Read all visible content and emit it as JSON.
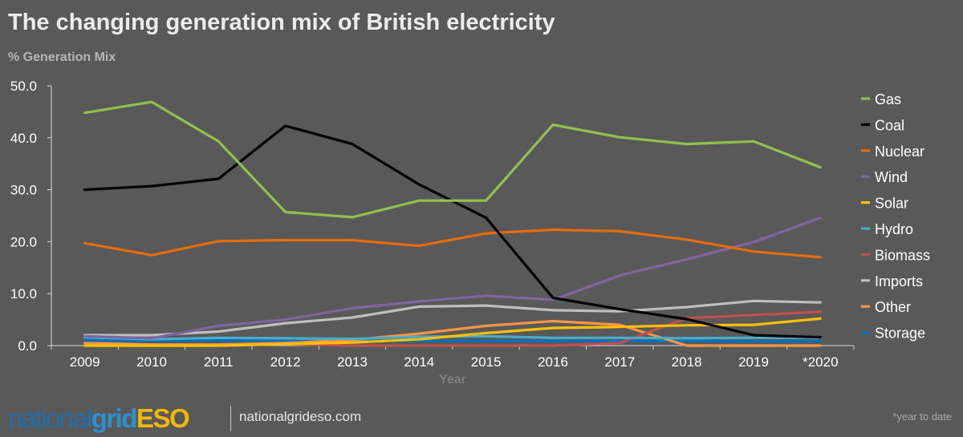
{
  "chart_data": {
    "type": "line",
    "title": "The changing generation mix of British electricity",
    "ylabel": "% Generation Mix",
    "xlabel": "Year",
    "categories": [
      "2009",
      "2010",
      "2011",
      "2012",
      "2013",
      "2014",
      "2015",
      "2016",
      "2017",
      "2018",
      "2019",
      "*2020"
    ],
    "y_ticks": [
      "0.0",
      "10.0",
      "20.0",
      "30.0",
      "40.0",
      "50.0"
    ],
    "ylim": [
      0,
      50
    ],
    "grid": false,
    "legend_position": "right",
    "series": [
      {
        "name": "Gas",
        "color": "#92c04c",
        "values": [
          44.8,
          46.9,
          39.3,
          25.7,
          24.7,
          27.9,
          27.9,
          42.5,
          40.1,
          38.8,
          39.3,
          34.3
        ]
      },
      {
        "name": "Coal",
        "color": "#000000",
        "values": [
          30.0,
          30.7,
          32.1,
          42.3,
          38.8,
          31.0,
          24.6,
          9.2,
          7.0,
          5.1,
          2.0,
          1.6
        ]
      },
      {
        "name": "Nuclear",
        "color": "#e46c0a",
        "values": [
          19.7,
          17.4,
          20.1,
          20.3,
          20.3,
          19.2,
          21.6,
          22.3,
          22.0,
          20.4,
          18.1,
          17.0
        ]
      },
      {
        "name": "Wind",
        "color": "#8064a2",
        "values": [
          1.8,
          1.4,
          3.8,
          5.0,
          7.2,
          8.5,
          9.6,
          8.8,
          13.5,
          16.6,
          19.9,
          24.6
        ]
      },
      {
        "name": "Solar",
        "color": "#ffc000",
        "values": [
          0.0,
          0.0,
          0.0,
          0.3,
          0.6,
          1.2,
          2.4,
          3.4,
          3.6,
          3.9,
          4.0,
          5.2
        ]
      },
      {
        "name": "Hydro",
        "color": "#4bacc6",
        "values": [
          1.6,
          1.2,
          1.5,
          1.4,
          1.3,
          1.7,
          1.8,
          1.5,
          1.5,
          1.4,
          1.5,
          1.5
        ]
      },
      {
        "name": "Biomass",
        "color": "#c0504d",
        "values": [
          0.0,
          0.0,
          0.0,
          0.3,
          0.0,
          0.0,
          0.0,
          0.0,
          0.5,
          5.3,
          5.9,
          6.5
        ]
      },
      {
        "name": "Imports",
        "color": "#bfbfbf",
        "values": [
          2.0,
          2.0,
          2.7,
          4.3,
          5.4,
          7.5,
          7.7,
          6.8,
          6.6,
          7.4,
          8.6,
          8.3
        ]
      },
      {
        "name": "Other",
        "color": "#f79646",
        "values": [
          0.5,
          0.2,
          0.2,
          0.5,
          1.1,
          2.3,
          3.8,
          4.7,
          4.0,
          0.0,
          0.0,
          0.0
        ]
      },
      {
        "name": "Storage",
        "color": "#0070c0",
        "values": [
          1.1,
          0.9,
          1.0,
          1.0,
          0.9,
          0.9,
          0.9,
          0.9,
          0.9,
          0.9,
          0.8,
          0.8
        ]
      }
    ]
  },
  "branding": {
    "logo_national": "national",
    "logo_grid": "grid",
    "logo_eso": "ESO",
    "website": "nationalgrideso.com"
  },
  "footnote": "*year to date"
}
